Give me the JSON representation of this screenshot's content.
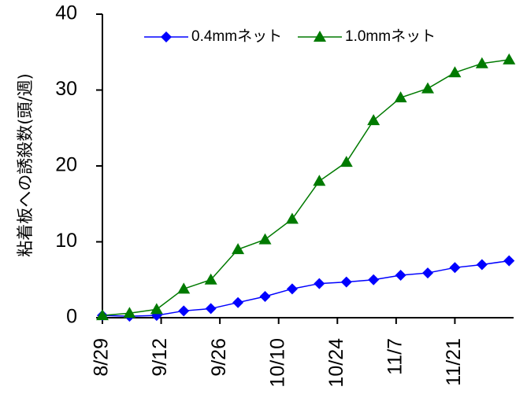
{
  "chart_data": {
    "type": "line",
    "title": "",
    "xlabel": "",
    "ylabel": "粘着板への誘殺数(頭/週)",
    "ylim": [
      0,
      40
    ],
    "yticks": [
      "0",
      "10",
      "20",
      "30",
      "40"
    ],
    "xticks": [
      "8/29",
      "9/12",
      "9/26",
      "10/10",
      "10/24",
      "11/7",
      "11/21"
    ],
    "x_range": [
      0,
      91
    ],
    "grid": false,
    "legend_position": "top",
    "series": [
      {
        "name": "0.4mmネット",
        "color": "#0000ff",
        "marker": "diamond",
        "x": [
          0,
          6,
          12,
          18,
          24,
          30,
          36,
          42,
          48,
          54,
          60,
          66,
          72,
          78,
          84,
          90
        ],
        "y": [
          0.3,
          0.2,
          0.3,
          0.9,
          1.2,
          2.0,
          2.8,
          3.8,
          4.5,
          4.7,
          5.0,
          5.6,
          5.9,
          6.6,
          7.0,
          7.5
        ]
      },
      {
        "name": "1.0mmネット",
        "color": "#007a00",
        "marker": "triangle",
        "x": [
          0,
          6,
          12,
          18,
          24,
          30,
          36,
          42,
          48,
          54,
          60,
          66,
          72,
          78,
          84,
          90
        ],
        "y": [
          0.3,
          0.6,
          1.1,
          3.8,
          5.0,
          9.0,
          10.3,
          13.0,
          18.0,
          20.5,
          26.0,
          29.0,
          30.2,
          32.3,
          33.5,
          34.0
        ]
      }
    ]
  }
}
